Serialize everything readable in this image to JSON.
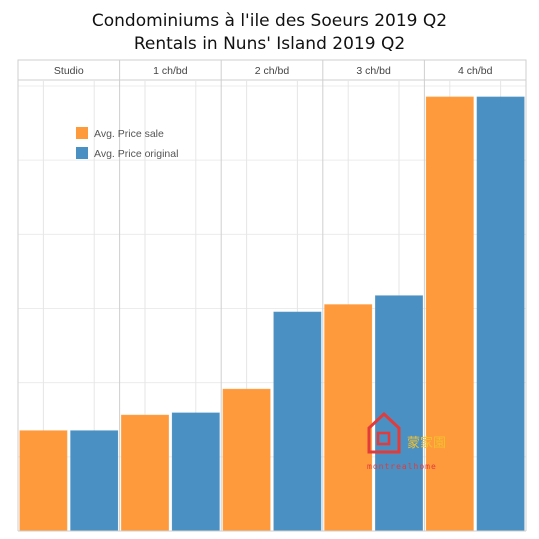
{
  "chart_data": {
    "type": "bar",
    "title": "Condominiums à l'ile des Soeurs 2019 Q2",
    "subtitle": "Rentals in Nuns' Island 2019 Q2",
    "facets": [
      "Studio",
      "1 ch/bd",
      "2 ch/bd",
      "3 ch/bd",
      "4 ch/bd"
    ],
    "series": [
      {
        "name": "Avg. Price sale",
        "color": "#ff9a3c",
        "values": [
          1350,
          1560,
          1910,
          3050,
          5850
        ]
      },
      {
        "name": "Avg. Price original",
        "color": "#4a90c2",
        "values": [
          1350,
          1590,
          2950,
          3170,
          5850
        ]
      }
    ],
    "ylim": [
      0,
      6000
    ],
    "grid": true,
    "legend_position": "top-left",
    "xlabel": "",
    "ylabel": ""
  },
  "watermark": {
    "chinese": "蒙家園",
    "english": "montrealhome"
  },
  "colors": {
    "logo_red": "#e23b3b",
    "logo_gold": "#f2c12e"
  }
}
